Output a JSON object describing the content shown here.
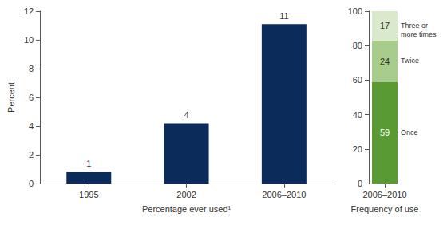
{
  "chart_data": [
    {
      "type": "bar",
      "categories": [
        "1995",
        "2002",
        "2006–2010"
      ],
      "values": [
        0.8,
        4.2,
        11.1
      ],
      "value_labels": [
        "1",
        "4",
        "11"
      ],
      "color": "#0b2b5a",
      "ylabel": "Percent",
      "xlabel": "Percentage ever used¹",
      "ylim": [
        0,
        12
      ],
      "yticks": [
        0,
        2,
        4,
        6,
        8,
        10,
        12
      ],
      "grid": false,
      "data_labels": true
    },
    {
      "type": "bar",
      "stacked": true,
      "categories": [
        "2006–2010"
      ],
      "series": [
        {
          "name": "Once",
          "color": "#5a9a32",
          "values": [
            59
          ]
        },
        {
          "name": "Twice",
          "color": "#a8cc8c",
          "values": [
            24
          ]
        },
        {
          "name": "Three or more times",
          "color": "#dae8cc",
          "values": [
            17
          ]
        }
      ],
      "xlabel": "Frequency of use",
      "ylim": [
        0,
        100
      ],
      "yticks": [
        0,
        20,
        40,
        60,
        80,
        100
      ],
      "grid": false,
      "data_labels": true
    }
  ]
}
